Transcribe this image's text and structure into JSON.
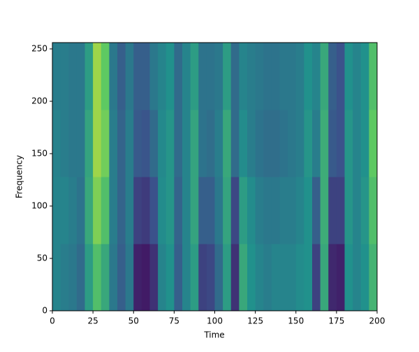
{
  "chart_data": {
    "type": "heatmap",
    "xlabel": "Time",
    "ylabel": "Frequency",
    "x": [
      0,
      5,
      10,
      15,
      20,
      25,
      30,
      35,
      40,
      45,
      50,
      55,
      60,
      65,
      70,
      75,
      80,
      85,
      90,
      95,
      100,
      105,
      110,
      115,
      120,
      125,
      130,
      135,
      140,
      145,
      150,
      155,
      160,
      165,
      170,
      175,
      180,
      185,
      190,
      195,
      200
    ],
    "y": [
      0,
      64,
      128,
      192,
      256
    ],
    "z": [
      [
        0.45,
        0.42,
        0.4,
        0.35,
        0.55,
        0.7,
        0.6,
        0.4,
        0.3,
        0.4,
        0.1,
        0.08,
        0.15,
        0.45,
        0.5,
        0.3,
        0.45,
        0.55,
        0.2,
        0.22,
        0.35,
        0.55,
        0.15,
        0.6,
        0.5,
        0.45,
        0.42,
        0.45,
        0.45,
        0.45,
        0.48,
        0.5,
        0.2,
        0.6,
        0.12,
        0.1,
        0.5,
        0.45,
        0.5,
        0.65
      ],
      [
        0.45,
        0.45,
        0.42,
        0.38,
        0.6,
        0.8,
        0.7,
        0.42,
        0.32,
        0.42,
        0.2,
        0.18,
        0.25,
        0.48,
        0.52,
        0.32,
        0.45,
        0.58,
        0.3,
        0.3,
        0.4,
        0.58,
        0.22,
        0.55,
        0.48,
        0.42,
        0.4,
        0.4,
        0.42,
        0.42,
        0.45,
        0.5,
        0.3,
        0.62,
        0.2,
        0.2,
        0.52,
        0.45,
        0.52,
        0.7
      ],
      [
        0.44,
        0.42,
        0.4,
        0.4,
        0.58,
        0.85,
        0.78,
        0.42,
        0.32,
        0.42,
        0.28,
        0.26,
        0.35,
        0.47,
        0.52,
        0.35,
        0.45,
        0.58,
        0.38,
        0.36,
        0.42,
        0.6,
        0.35,
        0.48,
        0.42,
        0.38,
        0.36,
        0.36,
        0.38,
        0.4,
        0.42,
        0.52,
        0.42,
        0.62,
        0.28,
        0.25,
        0.52,
        0.45,
        0.5,
        0.75
      ],
      [
        0.42,
        0.42,
        0.4,
        0.4,
        0.55,
        0.85,
        0.75,
        0.4,
        0.3,
        0.4,
        0.3,
        0.3,
        0.4,
        0.45,
        0.5,
        0.35,
        0.45,
        0.55,
        0.38,
        0.38,
        0.4,
        0.55,
        0.35,
        0.45,
        0.42,
        0.4,
        0.38,
        0.38,
        0.4,
        0.4,
        0.42,
        0.5,
        0.45,
        0.6,
        0.3,
        0.25,
        0.5,
        0.45,
        0.5,
        0.7
      ]
    ],
    "xlim": [
      0,
      200
    ],
    "ylim": [
      0,
      256
    ],
    "xticks": [
      0,
      25,
      50,
      75,
      100,
      125,
      150,
      175,
      200
    ],
    "yticks": [
      0,
      50,
      100,
      150,
      200,
      250
    ]
  }
}
